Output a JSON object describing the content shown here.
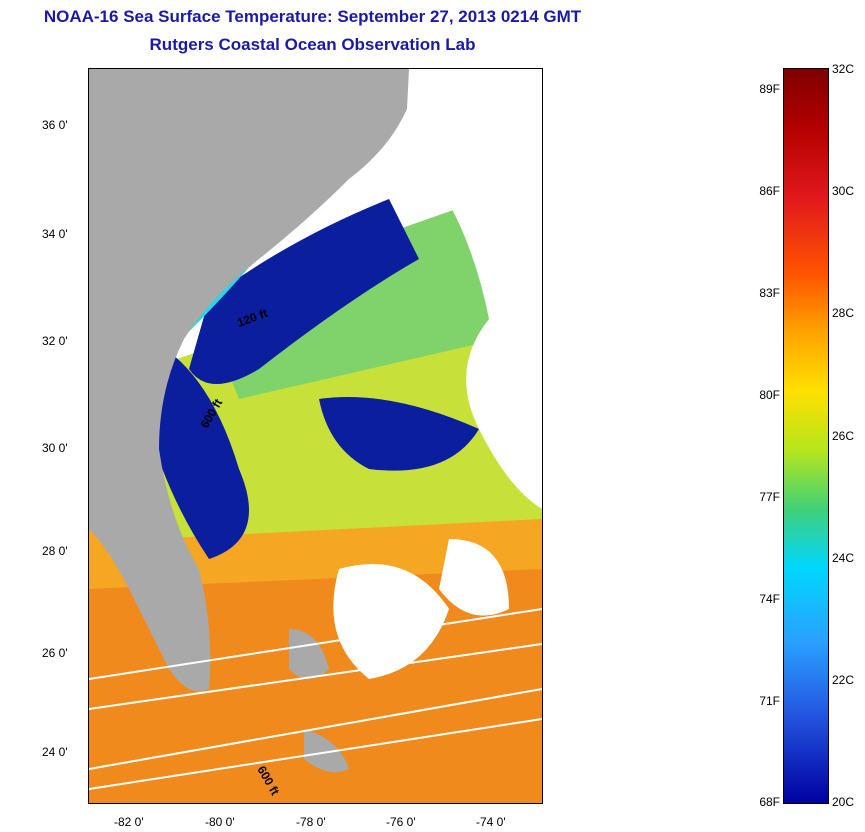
{
  "title": {
    "line1": "NOAA-16 Sea Surface Temperature:  September 27, 2013 0214 GMT",
    "line2": "Rutgers Coastal Ocean Observation Lab"
  },
  "map": {
    "lat_labels": [
      "36 0'",
      "34 0'",
      "32 0'",
      "30 0'",
      "28 0'",
      "26 0'",
      "24 0'"
    ],
    "lon_labels": [
      "-82 0'",
      "-80 0'",
      "-78 0'",
      "-76 0'",
      "-74 0'"
    ],
    "isobath_labels": [
      "120 ft",
      "600 ft",
      "600 ft"
    ],
    "colors": {
      "land": "#a9a9a9",
      "cloud": "#ffffff",
      "cold": "#00008b",
      "warm": "#ffa500"
    }
  },
  "colorbar": {
    "fahrenheit_labels": [
      "89F",
      "86F",
      "83F",
      "80F",
      "77F",
      "74F",
      "71F",
      "68F"
    ],
    "celsius_labels": [
      "32C",
      "30C",
      "28C",
      "26C",
      "24C",
      "22C",
      "20C"
    ],
    "range_c": [
      20,
      32
    ],
    "range_f": [
      68,
      89.6
    ]
  }
}
